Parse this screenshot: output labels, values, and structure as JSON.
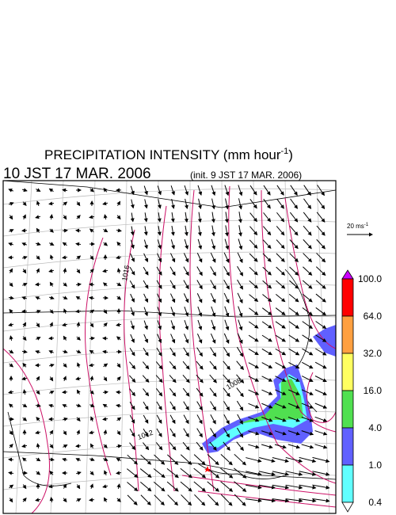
{
  "header": {
    "title": "PRECIPITATION INTENSITY (mm hour",
    "title_exponent": "-1",
    "title_close": ")",
    "valid_time": "10 JST 17 MAR. 2006",
    "init_time": "(init. 9 JST 17 MAR. 2006)"
  },
  "wind_scale": {
    "label": "20 ms",
    "exponent": "-1"
  },
  "map": {
    "contour_labels": [
      "1016",
      "1012",
      "1008"
    ]
  },
  "legend": {
    "levels": [
      "100.0",
      "64.0",
      "32.0",
      "16.0",
      "4.0",
      "1.0",
      "0.4"
    ],
    "colors": [
      "#cc00ff",
      "#ff0000",
      "#ffa040",
      "#ffff60",
      "#50e050",
      "#6060ff",
      "#60ffff",
      "#ffffff"
    ]
  }
}
